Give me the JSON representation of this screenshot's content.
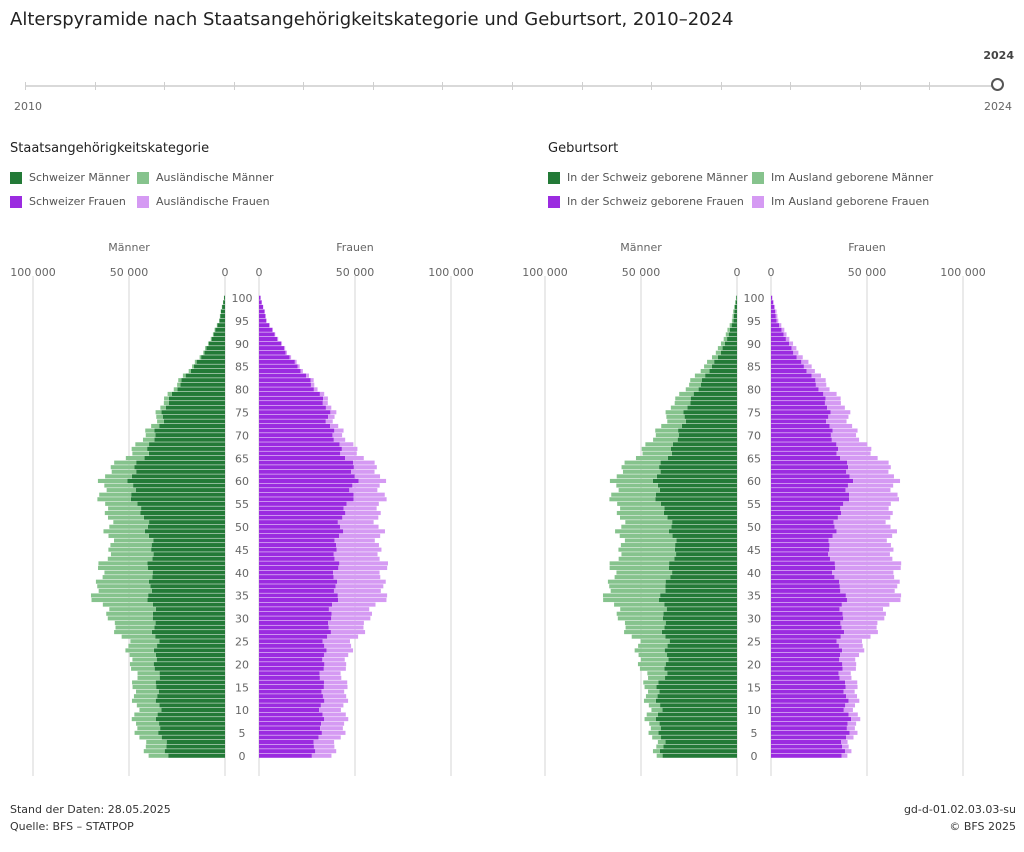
{
  "page": {
    "title": "Alterspyramide nach Staatsangehörigkeitskategorie und Geburtsort, 2010–2024"
  },
  "slider": {
    "start_label": "2010",
    "end_label": "2024",
    "current_value": "2024",
    "min_year": 2010,
    "max_year": 2024,
    "value": 2024
  },
  "colors": {
    "dark_green": "#237a37",
    "light_green": "#86c38d",
    "dark_purple": "#9b2be0",
    "light_purple": "#d59af3",
    "grid": "#d6d6d6",
    "axis_text": "#666666"
  },
  "legend_left": {
    "title": "Staatsangehörigkeitskategorie",
    "items": [
      "Schweizer Männer",
      "Ausländische Männer",
      "Schweizer Frauen",
      "Ausländische Frauen"
    ]
  },
  "legend_right": {
    "title": "Geburtsort",
    "items": [
      "In der Schweiz geborene Männer",
      "Im Ausland geborene Männer",
      "In der Schweiz geborene Frauen",
      "Im Ausland geborene Frauen"
    ]
  },
  "chart_data": [
    {
      "type": "bar",
      "orientation": "horizontal-pyramid",
      "side_labels": [
        "Männer",
        "Frauen"
      ],
      "x_ticks_left": [
        "100 000",
        "50 000",
        "0"
      ],
      "x_ticks_right": [
        "0",
        "50 000",
        "100 000"
      ],
      "xlim": [
        0,
        100000
      ],
      "age_ticks": [
        "100",
        "95",
        "90",
        "85",
        "80",
        "75",
        "70",
        "65",
        "60",
        "55",
        "50",
        "45",
        "40",
        "35",
        "30",
        "25",
        "20",
        "15",
        "10",
        "5",
        "0"
      ],
      "ages": [
        0,
        5,
        10,
        15,
        20,
        25,
        30,
        35,
        40,
        45,
        50,
        55,
        60,
        65,
        70,
        75,
        80,
        85,
        90,
        95,
        100
      ],
      "grid": true,
      "series": [
        {
          "name": "Schweizer Männer",
          "side": "left",
          "values": [
            29000,
            34000,
            35000,
            35000,
            36000,
            36000,
            37000,
            39000,
            39000,
            38000,
            40000,
            46000,
            50000,
            43000,
            36000,
            32000,
            26000,
            16000,
            8000,
            3000,
            500
          ]
        },
        {
          "name": "Ausländische Männer",
          "side": "left",
          "values": [
            10000,
            12000,
            12000,
            12000,
            12000,
            16000,
            23000,
            29000,
            26000,
            22000,
            20000,
            17000,
            15000,
            10000,
            5000,
            3000,
            2000,
            1000,
            500,
            200,
            50
          ]
        },
        {
          "name": "Schweizer Frauen",
          "side": "right",
          "values": [
            27000,
            32000,
            33000,
            33000,
            33000,
            35000,
            37000,
            40000,
            40000,
            40000,
            42000,
            46000,
            51000,
            46000,
            38000,
            36000,
            30000,
            20000,
            11000,
            4000,
            800
          ]
        },
        {
          "name": "Ausländische Frauen",
          "side": "right",
          "values": [
            10000,
            12000,
            12000,
            12000,
            11000,
            15000,
            20000,
            25000,
            25000,
            23000,
            20000,
            17000,
            14000,
            10000,
            5000,
            3000,
            2000,
            1000,
            500,
            200,
            50
          ]
        }
      ]
    },
    {
      "type": "bar",
      "orientation": "horizontal-pyramid",
      "side_labels": [
        "Männer",
        "Frauen"
      ],
      "x_ticks_left": [
        "100 000",
        "50 000",
        "0"
      ],
      "x_ticks_right": [
        "0",
        "50 000",
        "100 000"
      ],
      "xlim": [
        0,
        100000
      ],
      "age_ticks": [
        "100",
        "95",
        "90",
        "85",
        "80",
        "75",
        "70",
        "65",
        "60",
        "55",
        "50",
        "45",
        "40",
        "35",
        "30",
        "25",
        "20",
        "15",
        "10",
        "5",
        "0"
      ],
      "ages": [
        0,
        5,
        10,
        15,
        20,
        25,
        30,
        35,
        40,
        45,
        50,
        55,
        60,
        65,
        70,
        75,
        80,
        85,
        90,
        95,
        100
      ],
      "grid": true,
      "series": [
        {
          "name": "In der Schweiz geborene Männer",
          "side": "left",
          "values": [
            38000,
            40000,
            41000,
            41000,
            36000,
            37000,
            38000,
            39000,
            35000,
            32000,
            34000,
            40000,
            43000,
            37000,
            30000,
            27000,
            21000,
            13000,
            6000,
            2000,
            400
          ]
        },
        {
          "name": "Im Ausland geborene Männer",
          "side": "left",
          "values": [
            3000,
            5000,
            6000,
            6000,
            14000,
            16000,
            23000,
            29000,
            30000,
            29000,
            26000,
            23000,
            22000,
            17000,
            12000,
            9000,
            7000,
            4000,
            2000,
            800,
            150
          ]
        },
        {
          "name": "In der Schweiz geborene Frauen",
          "side": "right",
          "values": [
            36000,
            40000,
            40000,
            38000,
            36000,
            36000,
            37000,
            38000,
            33000,
            30000,
            33000,
            38000,
            42000,
            37000,
            31000,
            30000,
            26000,
            17000,
            9000,
            3000,
            600
          ]
        },
        {
          "name": "Im Ausland geborene Frauen",
          "side": "right",
          "values": [
            3000,
            4000,
            5000,
            6000,
            7000,
            14000,
            21000,
            28000,
            33000,
            33000,
            29000,
            25000,
            24000,
            20000,
            13000,
            10000,
            6000,
            4000,
            2000,
            1000,
            200
          ]
        }
      ]
    }
  ],
  "footer": {
    "stand": "Stand der Daten: 28.05.2025",
    "quelle": "Quelle: BFS – STATPOP",
    "code": "gd-d-01.02.03.03-su",
    "copyright": "© BFS 2025"
  }
}
